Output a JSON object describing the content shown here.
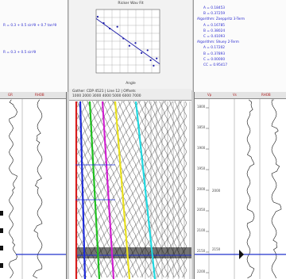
{
  "crossplot": {
    "title": "Ricker Wav Fit",
    "x_label": "Angle",
    "points": [
      [
        1,
        7.2
      ],
      [
        5,
        6.5
      ],
      [
        9,
        5.9
      ],
      [
        14,
        6.1
      ],
      [
        18,
        4.8
      ],
      [
        22,
        4.0
      ],
      [
        26,
        4.3
      ],
      [
        30,
        3.2
      ],
      [
        34,
        3.5
      ],
      [
        36,
        2.4
      ],
      [
        38,
        1.8
      ],
      [
        40,
        2.6
      ]
    ],
    "fit": [
      [
        0,
        7.0
      ],
      [
        42,
        2.0
      ]
    ]
  },
  "left_equations": [
    "R = 0.3 + 0.5 sin²θ + 0.7 tan²θ",
    "R = 0.3 + 0.5 sin²θ"
  ],
  "right_equations": [
    "A = 0.18453",
    "B = 0.37259",
    "Algorithm: Zoeppritz 3-Term",
    "A = 0.16785",
    "B = 0.38024",
    "C = 0.41093",
    "Algorithm: Shuey 2-Term",
    "A = 0.17202",
    "B = 0.37893",
    "C = 0.00000",
    "CC = 0.95417"
  ],
  "left_track_headers": [
    "GR",
    "RHOB"
  ],
  "right_track_headers": [
    "Vp",
    "Vs",
    "RHOB"
  ],
  "depth_labels": [
    "1800",
    "1850",
    "1900",
    "1950",
    "2000",
    "2050",
    "2100",
    "2150",
    "2200"
  ],
  "depth_marker_1": "2000",
  "depth_marker_2": "2150",
  "gather_header_line1": "Gather: CDP 4521 | Line 12 | Offsets",
  "gather_header_line2": "1000 2000 3000 4000 5000 6000 7000",
  "colors": {
    "blue": "#1e2bd8",
    "red": "#d81e1e",
    "green": "#20c020",
    "magenta": "#d020d0",
    "yellow": "#e8e020",
    "cyan": "#20d8e0"
  }
}
